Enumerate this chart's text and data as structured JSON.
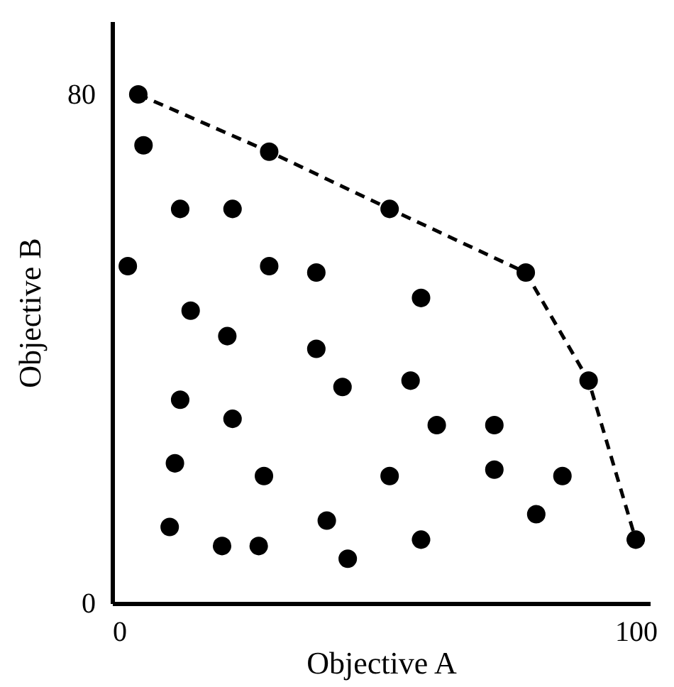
{
  "chart_data": {
    "type": "scatter",
    "xlabel": "Objective A",
    "ylabel": "Objective B",
    "xlim": [
      0,
      102.7
    ],
    "ylim": [
      0,
      91.5
    ],
    "xticks": [
      0,
      100
    ],
    "yticks": [
      0,
      80
    ],
    "grid": false,
    "series": [
      {
        "color": "#000000",
        "marker": "circle",
        "x": [
          5,
          6,
          30,
          13,
          23,
          53,
          3,
          30,
          39,
          79,
          59,
          15,
          22,
          39,
          91,
          44,
          57,
          13,
          23,
          62,
          73,
          12,
          29,
          53,
          73,
          86,
          81,
          11,
          21,
          28,
          41,
          45,
          59,
          100
        ],
        "values": [
          80,
          72,
          71,
          62,
          62,
          62,
          53,
          53,
          52,
          52,
          48,
          46,
          42,
          40,
          35,
          34,
          35,
          32,
          29,
          28,
          28,
          22,
          20,
          20,
          21,
          20,
          14,
          12,
          9,
          9,
          13,
          7,
          10,
          10
        ]
      },
      {
        "type": "line",
        "color": "#000000",
        "line_style": "dashed",
        "x": [
          5,
          30,
          53,
          79,
          91,
          100
        ],
        "values": [
          80,
          71,
          62,
          52,
          35,
          10
        ]
      }
    ]
  }
}
